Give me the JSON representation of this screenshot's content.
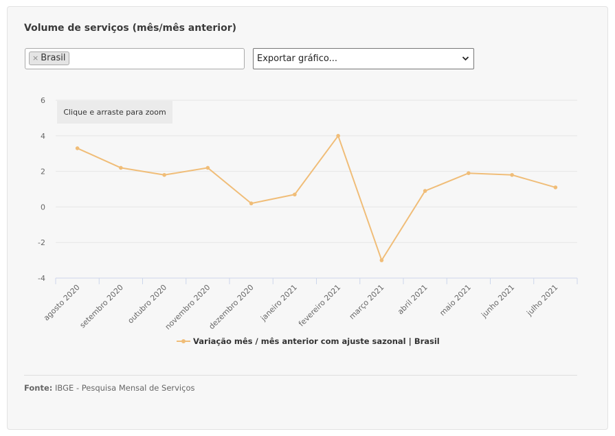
{
  "title": "Volume de serviços (mês/mês anterior)",
  "filter": {
    "chip_label": "Brasil",
    "chip_remove": "×"
  },
  "export_select": {
    "selected": "Exportar gráfico..."
  },
  "zoom_hint": "Clique e arraste para zoom",
  "colors": {
    "series": "#f0bd78",
    "grid": "#e6e6e6",
    "axis": "#ccd6eb",
    "text": "#666666"
  },
  "chart_data": {
    "type": "line",
    "categories": [
      "agosto 2020",
      "setembro 2020",
      "outubro 2020",
      "novembro 2020",
      "dezembro 2020",
      "janeiro 2021",
      "fevereiro 2021",
      "março 2021",
      "abril 2021",
      "maio 2021",
      "junho 2021",
      "julho 2021"
    ],
    "series": [
      {
        "name": "Variação mês / mês anterior com ajuste sazonal | Brasil",
        "values": [
          3.3,
          2.2,
          1.8,
          2.2,
          0.2,
          0.7,
          4.0,
          -3.0,
          0.9,
          1.9,
          1.8,
          1.1
        ]
      }
    ],
    "y_ticks": [
      "6",
      "4",
      "2",
      "0",
      "-2",
      "-4"
    ],
    "ylim": [
      -4,
      6
    ],
    "grid": true,
    "legend_position": "bottom-center"
  },
  "source": {
    "label": "Fonte:",
    "text": "IBGE - Pesquisa Mensal de Serviços"
  }
}
